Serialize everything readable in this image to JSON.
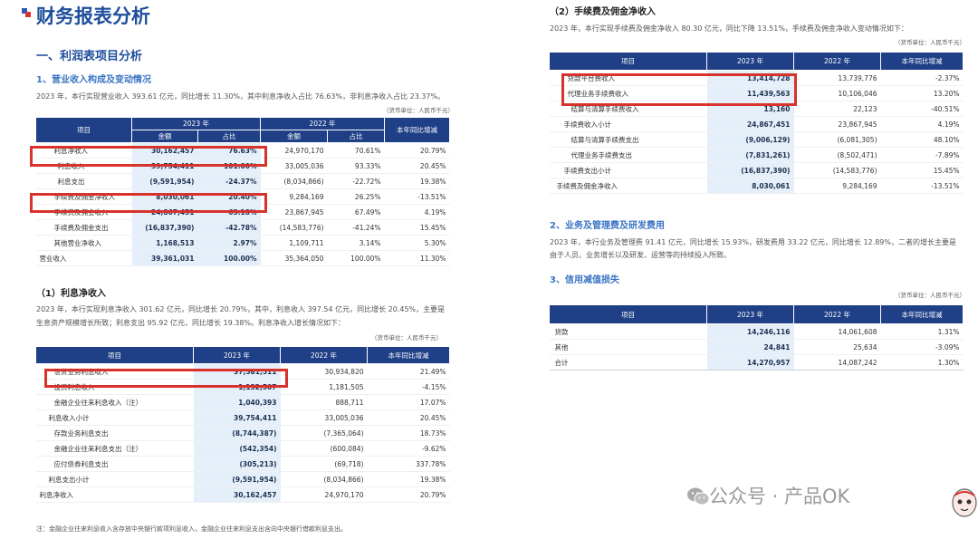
{
  "page_title": "财务报表分析",
  "section1": "一、利润表项目分析",
  "sub1": "1、营业收入构成及变动情况",
  "sub1_desc": "2023 年，本行实现营业收入 393.61 亿元，同比增长 11.30%，其中利息净收入占比 76.63%，非利息净收入占比 23.37%。",
  "unit": "（货币单位：人民币千元）",
  "t1": {
    "h_item": "项目",
    "h_2023": "2023 年",
    "h_2022": "2022 年",
    "h_yoy": "本年同比增减",
    "h_amt": "金额",
    "h_pct": "占比",
    "rows": [
      [
        "利息净收入",
        "30,162,457",
        "76.63%",
        "24,970,170",
        "70.61%",
        "20.79%"
      ],
      [
        "利息收入",
        "39,754,411",
        "101.00%",
        "33,005,036",
        "93.33%",
        "20.45%"
      ],
      [
        "利息支出",
        "(9,591,954)",
        "-24.37%",
        "(8,034,866)",
        "-22.72%",
        "19.38%"
      ],
      [
        "手续费及佣金净收入",
        "8,030,061",
        "20.40%",
        "9,284,169",
        "26.25%",
        "-13.51%"
      ],
      [
        "手续费及佣金收入",
        "24,867,451",
        "63.18%",
        "23,867,945",
        "67.49%",
        "4.19%"
      ],
      [
        "手续费及佣金支出",
        "(16,837,390)",
        "-42.78%",
        "(14,583,776)",
        "-41.24%",
        "15.45%"
      ],
      [
        "其他营业净收入",
        "1,168,513",
        "2.97%",
        "1,109,711",
        "3.14%",
        "5.30%"
      ],
      [
        "营业收入",
        "39,361,031",
        "100.00%",
        "35,364,050",
        "100.00%",
        "11.30%"
      ]
    ]
  },
  "blk1": "（1）利息净收入",
  "blk1_p1": "2023 年，本行实现利息净收入 301.62 亿元，同比增长 20.79%，其中，利息收入 397.54 亿元，同比增长 20.45%，主要是",
  "blk1_p2": "生息资产规模增长所致；利息支出 95.92 亿元，同比增长 19.38%。利息净收入增长情况如下：",
  "unit2": "（货币单位：人民币千元）",
  "t2": {
    "h_item": "项目",
    "h_2023": "2023 年",
    "h_2022": "2022 年",
    "h_yoy": "本年同比增减",
    "rows": [
      [
        "信贷业务利息收入",
        "37,581,511",
        "30,934,820",
        "21.49%"
      ],
      [
        "投资利息收入",
        "1,132,507",
        "1,181,505",
        "-4.15%"
      ],
      [
        "金融企业往来利息收入（注）",
        "1,040,393",
        "888,711",
        "17.07%"
      ],
      [
        "利息收入小计",
        "39,754,411",
        "33,005,036",
        "20.45%"
      ],
      [
        "存款业务利息支出",
        "(8,744,387)",
        "(7,365,064)",
        "18.73%"
      ],
      [
        "金融企业往来利息支出（注）",
        "(542,354)",
        "(600,084)",
        "-9.62%"
      ],
      [
        "应付债券利息支出",
        "(305,213)",
        "(69,718)",
        "337.78%"
      ],
      [
        "利息支出小计",
        "(9,591,954)",
        "(8,034,866)",
        "19.38%"
      ],
      [
        "利息净收入",
        "30,162,457",
        "24,970,170",
        "20.79%"
      ]
    ]
  },
  "footnote": "注：金融企业往来利息收入含存放中央银行款项利息收入，金融企业往来利息支出含向中央银行借款利息支出。",
  "blk2": "（2）手续费及佣金净收入",
  "blk2_p": "2023 年，本行实现手续费及佣金净收入 80.30 亿元，同比下降 13.51%，手续费及佣金净收入变动情况如下：",
  "unit3": "（货币单位：人民币千元）",
  "t3": {
    "h_item": "项目",
    "h_2023": "2023 年",
    "h_2022": "2022 年",
    "h_yoy": "本年同比增减",
    "rows": [
      [
        "贷款平台费收入",
        "13,414,728",
        "13,739,776",
        "-2.37%"
      ],
      [
        "代理业务手续费收入",
        "11,439,563",
        "10,106,046",
        "13.20%"
      ],
      [
        "结算与清算手续费收入",
        "13,160",
        "22,123",
        "-40.51%"
      ],
      [
        "手续费收入小计",
        "24,867,451",
        "23,867,945",
        "4.19%"
      ],
      [
        "结算与清算手续费支出",
        "(9,006,129)",
        "(6,081,305)",
        "48.10%"
      ],
      [
        "代理业务手续费支出",
        "(7,831,261)",
        "(8,502,471)",
        "-7.89%"
      ],
      [
        "手续费支出小计",
        "(16,837,390)",
        "(14,583,776)",
        "15.45%"
      ],
      [
        "手续费及佣金净收入",
        "8,030,061",
        "9,284,169",
        "-13.51%"
      ]
    ]
  },
  "sec2": "2、业务及管理费及研发费用",
  "sec2_p1": "2023 年，本行业务及管理费 91.41 亿元，同比增长 15.93%，研发费用 33.22 亿元，同比增长 12.89%，二者的增长主要是",
  "sec2_p2": "由于人员、业务增长以及研发、运营等的持续投入所致。",
  "sec3": "3、信用减值损失",
  "unit4": "（货币单位：人民币千元）",
  "t4": {
    "h_item": "项目",
    "h_2023": "2023 年",
    "h_2022": "2022 年",
    "h_yoy": "本年同比增减",
    "rows": [
      [
        "贷款",
        "14,246,116",
        "14,061,608",
        "1.31%"
      ],
      [
        "其他",
        "24,841",
        "25,634",
        "-3.09%"
      ],
      [
        "合计",
        "14,270,957",
        "14,087,242",
        "1.30%"
      ]
    ]
  },
  "watermark": "公众号 · 产品OK",
  "icons": [
    "wechat-icon",
    "mascot-icon"
  ],
  "colors": {
    "header": "#1f3f86",
    "title": "#1f4e9c",
    "highlight": "#d8322c",
    "value_bg": "#e4effa"
  }
}
